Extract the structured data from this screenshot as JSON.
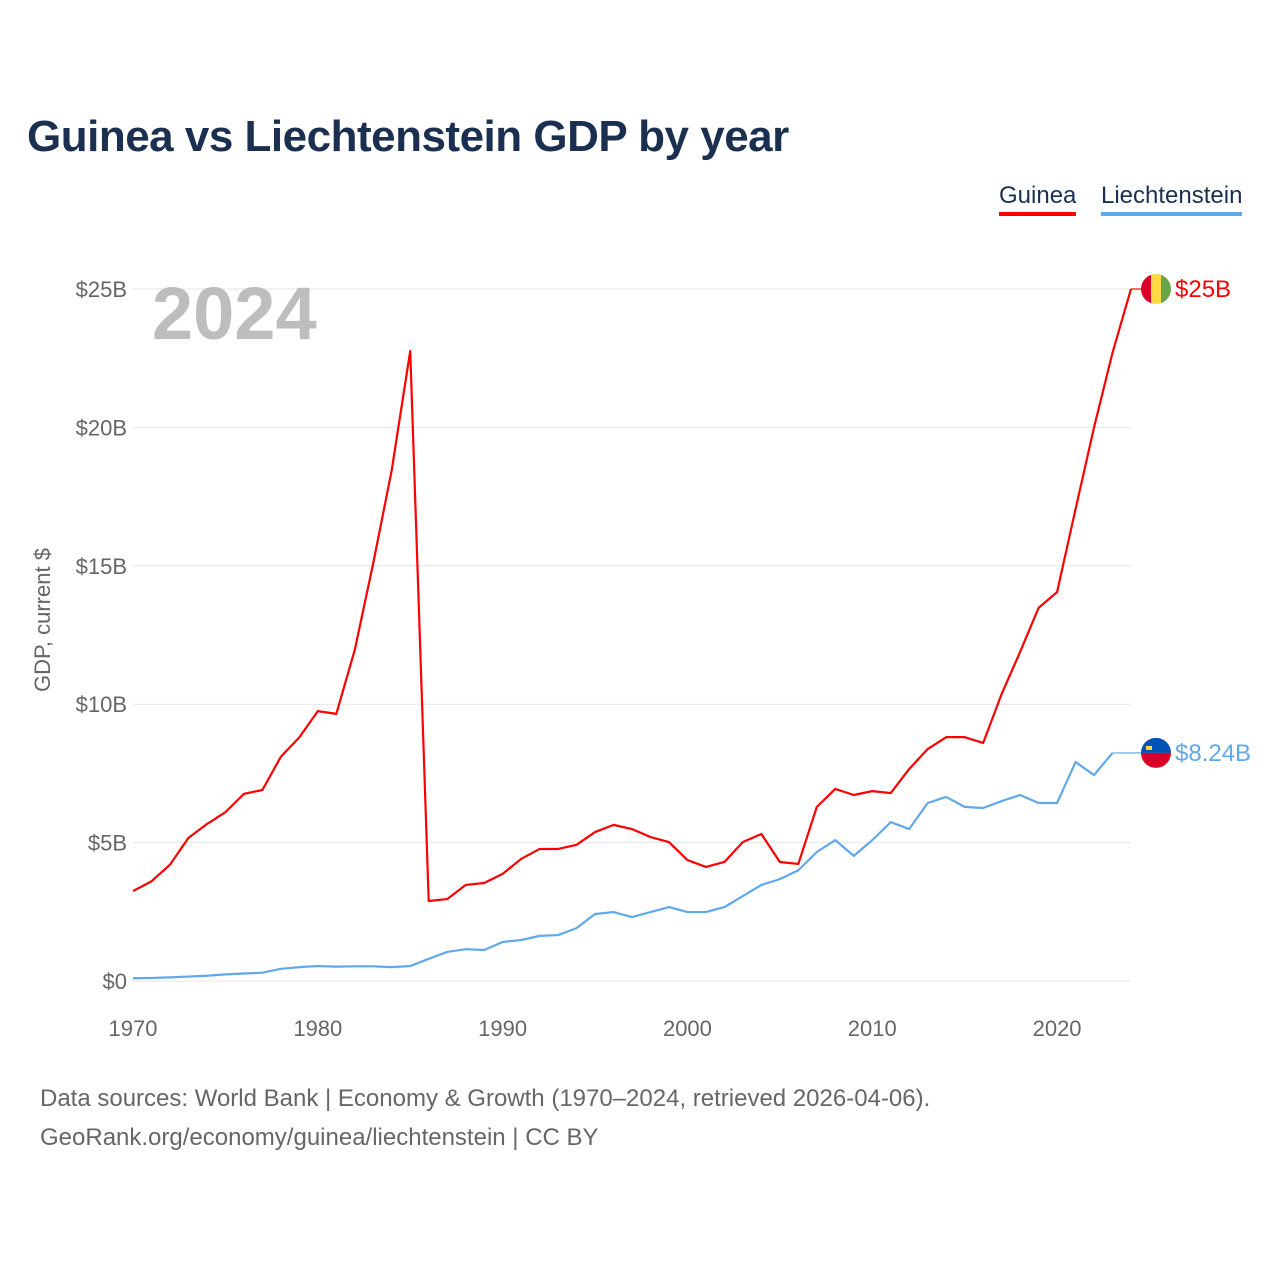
{
  "title": "Guinea vs Liechtenstein GDP by year",
  "legend": [
    "Guinea",
    "Liechtenstein"
  ],
  "year_watermark": "2024",
  "footer": {
    "line1": "Data sources: World Bank | Economy & Growth (1970–2024, retrieved 2026-04-06).",
    "line2": "GeoRank.org/economy/guinea/liechtenstein | CC BY"
  },
  "chart_data": {
    "type": "line",
    "title": "Guinea vs Liechtenstein GDP by year",
    "xlabel": "",
    "ylabel": "GDP, current $",
    "xlim": [
      1970,
      2024
    ],
    "ylim": [
      0,
      25
    ],
    "x_ticks": [
      1970,
      1980,
      1990,
      2000,
      2010,
      2020
    ],
    "x_tick_labels": [
      "1970",
      "1980",
      "1990",
      "2000",
      "2010",
      "2020"
    ],
    "y_ticks": [
      0,
      5,
      10,
      15,
      20,
      25
    ],
    "y_tick_labels": [
      "$0",
      "$5B",
      "$10B",
      "$15B",
      "$20B",
      "$25B"
    ],
    "grid": true,
    "legend_position": "top-right",
    "units": "billions USD",
    "series": [
      {
        "name": "Guinea",
        "color": "#ff0000",
        "end_label": "$25B",
        "start_year": 1970,
        "values": [
          3.25,
          3.6,
          4.2,
          5.17,
          5.67,
          6.1,
          6.76,
          6.9,
          8.1,
          8.8,
          9.75,
          9.65,
          11.96,
          15.1,
          18.46,
          22.76,
          2.89,
          2.96,
          3.47,
          3.54,
          3.87,
          4.41,
          4.77,
          4.77,
          4.92,
          5.38,
          5.64,
          5.49,
          5.2,
          5.02,
          4.37,
          4.12,
          4.3,
          5.02,
          5.31,
          4.3,
          4.23,
          6.29,
          6.94,
          6.72,
          6.86,
          6.79,
          7.66,
          8.38,
          8.81,
          8.81,
          8.6,
          10.37,
          11.89,
          13.48,
          14.05,
          17.05,
          20.0,
          22.7,
          25.0
        ]
      },
      {
        "name": "Liechtenstein",
        "color": "#5fa8ea",
        "end_label": "$8.24B",
        "start_year": 1970,
        "values": [
          0.1,
          0.11,
          0.13,
          0.16,
          0.19,
          0.24,
          0.27,
          0.3,
          0.44,
          0.5,
          0.54,
          0.52,
          0.53,
          0.53,
          0.5,
          0.54,
          0.8,
          1.05,
          1.15,
          1.12,
          1.41,
          1.48,
          1.63,
          1.66,
          1.91,
          2.42,
          2.49,
          2.31,
          2.49,
          2.67,
          2.49,
          2.49,
          2.67,
          3.07,
          3.47,
          3.68,
          4.0,
          4.66,
          5.09,
          4.52,
          5.09,
          5.74,
          5.49,
          6.43,
          6.65,
          6.29,
          6.25,
          6.5,
          6.72,
          6.43,
          6.43,
          7.91,
          7.44,
          8.24
        ]
      }
    ]
  }
}
